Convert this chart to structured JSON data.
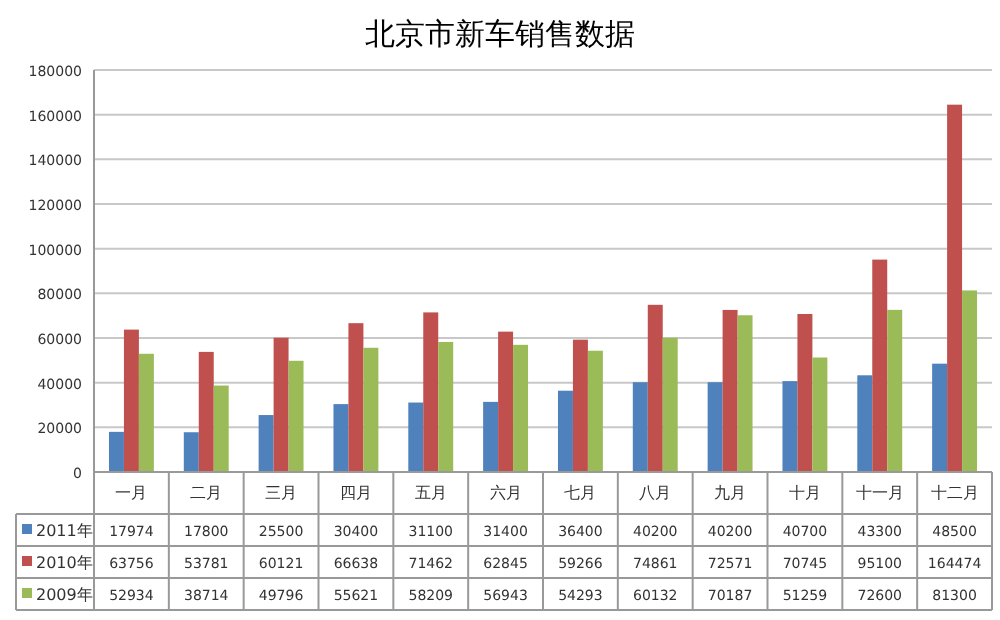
{
  "chart_data": {
    "type": "bar",
    "title": "北京市新车销售数据",
    "categories": [
      "一月",
      "二月",
      "三月",
      "四月",
      "五月",
      "六月",
      "七月",
      "八月",
      "九月",
      "十月",
      "十一月",
      "十二月"
    ],
    "series": [
      {
        "name": "2011年",
        "color": "#4f81bd",
        "values": [
          17974,
          17800,
          25500,
          30400,
          31100,
          31400,
          36400,
          40200,
          40200,
          40700,
          43300,
          48500
        ]
      },
      {
        "name": "2010年",
        "color": "#c0504d",
        "values": [
          63756,
          53781,
          60121,
          66638,
          71462,
          62845,
          59266,
          74861,
          72571,
          70745,
          95100,
          164474
        ]
      },
      {
        "name": "2009年",
        "color": "#9bbb59",
        "values": [
          52934,
          38714,
          49796,
          55621,
          58209,
          56943,
          54293,
          60132,
          70187,
          51259,
          72600,
          81300
        ]
      }
    ],
    "ylim": [
      0,
      180000
    ],
    "yticks": [
      0,
      20000,
      40000,
      60000,
      80000,
      100000,
      120000,
      140000,
      160000,
      180000
    ],
    "grid": "y",
    "legend": "bottom",
    "data_labels": true
  }
}
